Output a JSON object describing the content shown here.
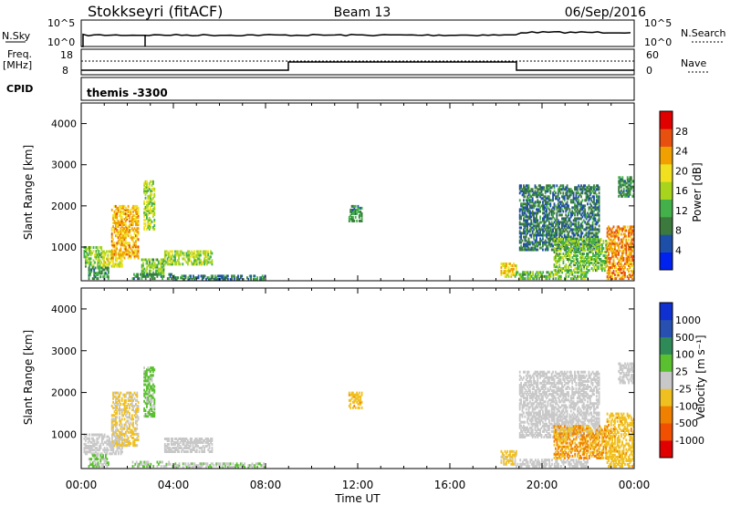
{
  "header": {
    "station": "Stokkseyri (fitACF)",
    "beam": "Beam 13",
    "date": "06/Sep/2016"
  },
  "nsky_panel": {
    "left_label": "N.Sky",
    "right_label": "N.Search",
    "ticks_left": [
      "10^5",
      "10^0"
    ],
    "ticks_right": [
      "10^5",
      "10^0"
    ]
  },
  "freq_panel": {
    "left_label_1": "Freq.",
    "left_label_2": "[MHz]",
    "right_label": "Nave",
    "ticks_left": [
      "18",
      "8"
    ],
    "ticks_right": [
      "60",
      "0"
    ]
  },
  "cpid_panel": {
    "left_label": "CPID",
    "text": "themis -3300"
  },
  "colors": {
    "power": [
      "#0022ee",
      "#1e4fa8",
      "#3b7a3c",
      "#43b04a",
      "#a8d41e",
      "#f0e020",
      "#f0a000",
      "#e85010",
      "#e00000"
    ],
    "velocity": [
      "#e00000",
      "#f05000",
      "#f08000",
      "#f0c020",
      "#c8c8c8",
      "#5ac030",
      "#2e8b57",
      "#2850b0",
      "#1030d0"
    ]
  },
  "chart_data": [
    {
      "type": "heatmap",
      "name": "power",
      "xlabel": "",
      "ylabel": "Slant Range [km]",
      "x_range_hours": [
        0,
        24
      ],
      "ylim": [
        180,
        4500
      ],
      "yticks": [
        "1000",
        "2000",
        "3000",
        "4000"
      ],
      "colorbar": {
        "label": "Power [dB]",
        "ticks": [
          "4",
          "8",
          "12",
          "16",
          "20",
          "24",
          "28"
        ],
        "range": [
          0,
          32
        ]
      },
      "echo_regions": [
        {
          "t0": 0.1,
          "t1": 0.9,
          "r0": 500,
          "r1": 1000,
          "value": 14
        },
        {
          "t0": 0.9,
          "t1": 1.8,
          "r0": 500,
          "r1": 900,
          "value": 18
        },
        {
          "t0": 0.3,
          "t1": 1.2,
          "r0": 200,
          "r1": 500,
          "value": 10
        },
        {
          "t0": 1.3,
          "t1": 2.5,
          "r0": 700,
          "r1": 2000,
          "value": 22
        },
        {
          "t0": 2.7,
          "t1": 3.2,
          "r0": 1400,
          "r1": 2600,
          "value": 16
        },
        {
          "t0": 2.6,
          "t1": 3.6,
          "r0": 300,
          "r1": 700,
          "value": 14
        },
        {
          "t0": 3.6,
          "t1": 5.7,
          "r0": 550,
          "r1": 900,
          "value": 16
        },
        {
          "t0": 2.2,
          "t1": 4.0,
          "r0": 200,
          "r1": 350,
          "value": 10
        },
        {
          "t0": 4.0,
          "t1": 8.0,
          "r0": 180,
          "r1": 300,
          "value": 8
        },
        {
          "t0": 11.6,
          "t1": 12.2,
          "r0": 1600,
          "r1": 2000,
          "value": 10
        },
        {
          "t0": 18.2,
          "t1": 18.9,
          "r0": 250,
          "r1": 600,
          "value": 20
        },
        {
          "t0": 18.8,
          "t1": 22.0,
          "r0": 200,
          "r1": 400,
          "value": 14
        },
        {
          "t0": 19.0,
          "t1": 22.5,
          "r0": 900,
          "r1": 2500,
          "value": 8
        },
        {
          "t0": 20.5,
          "t1": 22.8,
          "r0": 400,
          "r1": 1200,
          "value": 14
        },
        {
          "t0": 22.8,
          "t1": 24.0,
          "r0": 200,
          "r1": 1500,
          "value": 24
        },
        {
          "t0": 23.3,
          "t1": 24.0,
          "r0": 2200,
          "r1": 2700,
          "value": 10
        }
      ]
    },
    {
      "type": "heatmap",
      "name": "velocity",
      "xlabel": "Time UT",
      "ylabel": "Slant Range [km]",
      "x_range_hours": [
        0,
        24
      ],
      "xticks": [
        "00:00",
        "04:00",
        "08:00",
        "12:00",
        "16:00",
        "20:00",
        "00:00"
      ],
      "ylim": [
        180,
        4500
      ],
      "yticks": [
        "1000",
        "2000",
        "3000",
        "4000"
      ],
      "colorbar": {
        "label": "Velocity [m s⁻¹]",
        "ticks": [
          "-1000",
          "-500",
          "-100",
          "-25",
          "25",
          "100",
          "500",
          "1000"
        ],
        "range": [
          -1200,
          1200
        ]
      },
      "echo_regions": [
        {
          "t0": 0.1,
          "t1": 1.8,
          "r0": 500,
          "r1": 1000,
          "value": 0
        },
        {
          "t0": 0.3,
          "t1": 1.2,
          "r0": 200,
          "r1": 500,
          "value": 150
        },
        {
          "t0": 1.3,
          "t1": 2.5,
          "r0": 700,
          "r1": 2000,
          "value": -150
        },
        {
          "t0": 2.7,
          "t1": 3.2,
          "r0": 1400,
          "r1": 2600,
          "value": 200
        },
        {
          "t0": 3.6,
          "t1": 5.7,
          "r0": 550,
          "r1": 900,
          "value": 0
        },
        {
          "t0": 2.2,
          "t1": 4.0,
          "r0": 200,
          "r1": 350,
          "value": 120
        },
        {
          "t0": 4.0,
          "t1": 8.0,
          "r0": 180,
          "r1": 300,
          "value": 80
        },
        {
          "t0": 11.6,
          "t1": 12.2,
          "r0": 1600,
          "r1": 2000,
          "value": -300
        },
        {
          "t0": 18.2,
          "t1": 18.9,
          "r0": 250,
          "r1": 600,
          "value": -200
        },
        {
          "t0": 18.8,
          "t1": 22.0,
          "r0": 200,
          "r1": 400,
          "value": 0
        },
        {
          "t0": 19.0,
          "t1": 22.5,
          "r0": 900,
          "r1": 2500,
          "value": 0
        },
        {
          "t0": 20.5,
          "t1": 22.8,
          "r0": 400,
          "r1": 1200,
          "value": -400
        },
        {
          "t0": 22.8,
          "t1": 24.0,
          "r0": 200,
          "r1": 1500,
          "value": -300
        },
        {
          "t0": 23.3,
          "t1": 24.0,
          "r0": 2200,
          "r1": 2700,
          "value": 0
        }
      ]
    }
  ]
}
